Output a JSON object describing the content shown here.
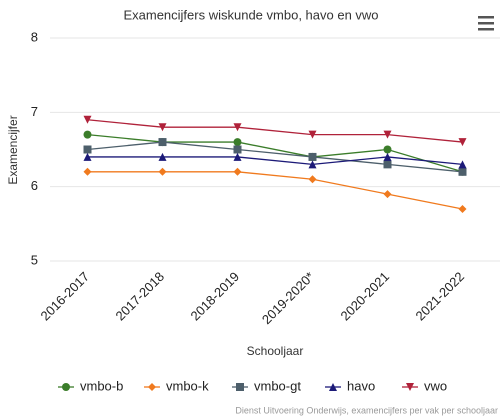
{
  "chart_data": {
    "type": "line",
    "title": "Examencijfers wiskunde vmbo, havo en vwo",
    "x_label": "Schooljaar",
    "y_label": "Examencijfer",
    "credits": "Dienst Uitvoering Onderwijs, examencijfers per vak per schooljaar",
    "categories": [
      "2016-2017",
      "2017-2018",
      "2018-2019",
      "2019-2020*",
      "2020-2021",
      "2021-2022"
    ],
    "series": [
      {
        "name": "vmbo-b",
        "color": "#3b7d2a",
        "marker": "circle",
        "values": [
          6.7,
          6.6,
          6.6,
          6.4,
          6.5,
          6.2
        ]
      },
      {
        "name": "vmbo-k",
        "color": "#f07a1e",
        "marker": "diamond",
        "values": [
          6.2,
          6.2,
          6.2,
          6.1,
          5.9,
          5.7
        ]
      },
      {
        "name": "vmbo-gt",
        "color": "#4d5f6b",
        "marker": "square",
        "values": [
          6.5,
          6.6,
          6.5,
          6.4,
          6.3,
          6.2
        ]
      },
      {
        "name": "havo",
        "color": "#1c1a78",
        "marker": "triangle",
        "values": [
          6.4,
          6.4,
          6.4,
          6.3,
          6.4,
          6.3
        ]
      },
      {
        "name": "vwo",
        "color": "#b0223a",
        "marker": "triangle-down",
        "values": [
          6.9,
          6.8,
          6.8,
          6.7,
          6.7,
          6.6
        ]
      }
    ],
    "ylim": [
      5,
      8
    ],
    "yticks": [
      5,
      6,
      7,
      8
    ],
    "grid": true,
    "legend": "bottom"
  }
}
